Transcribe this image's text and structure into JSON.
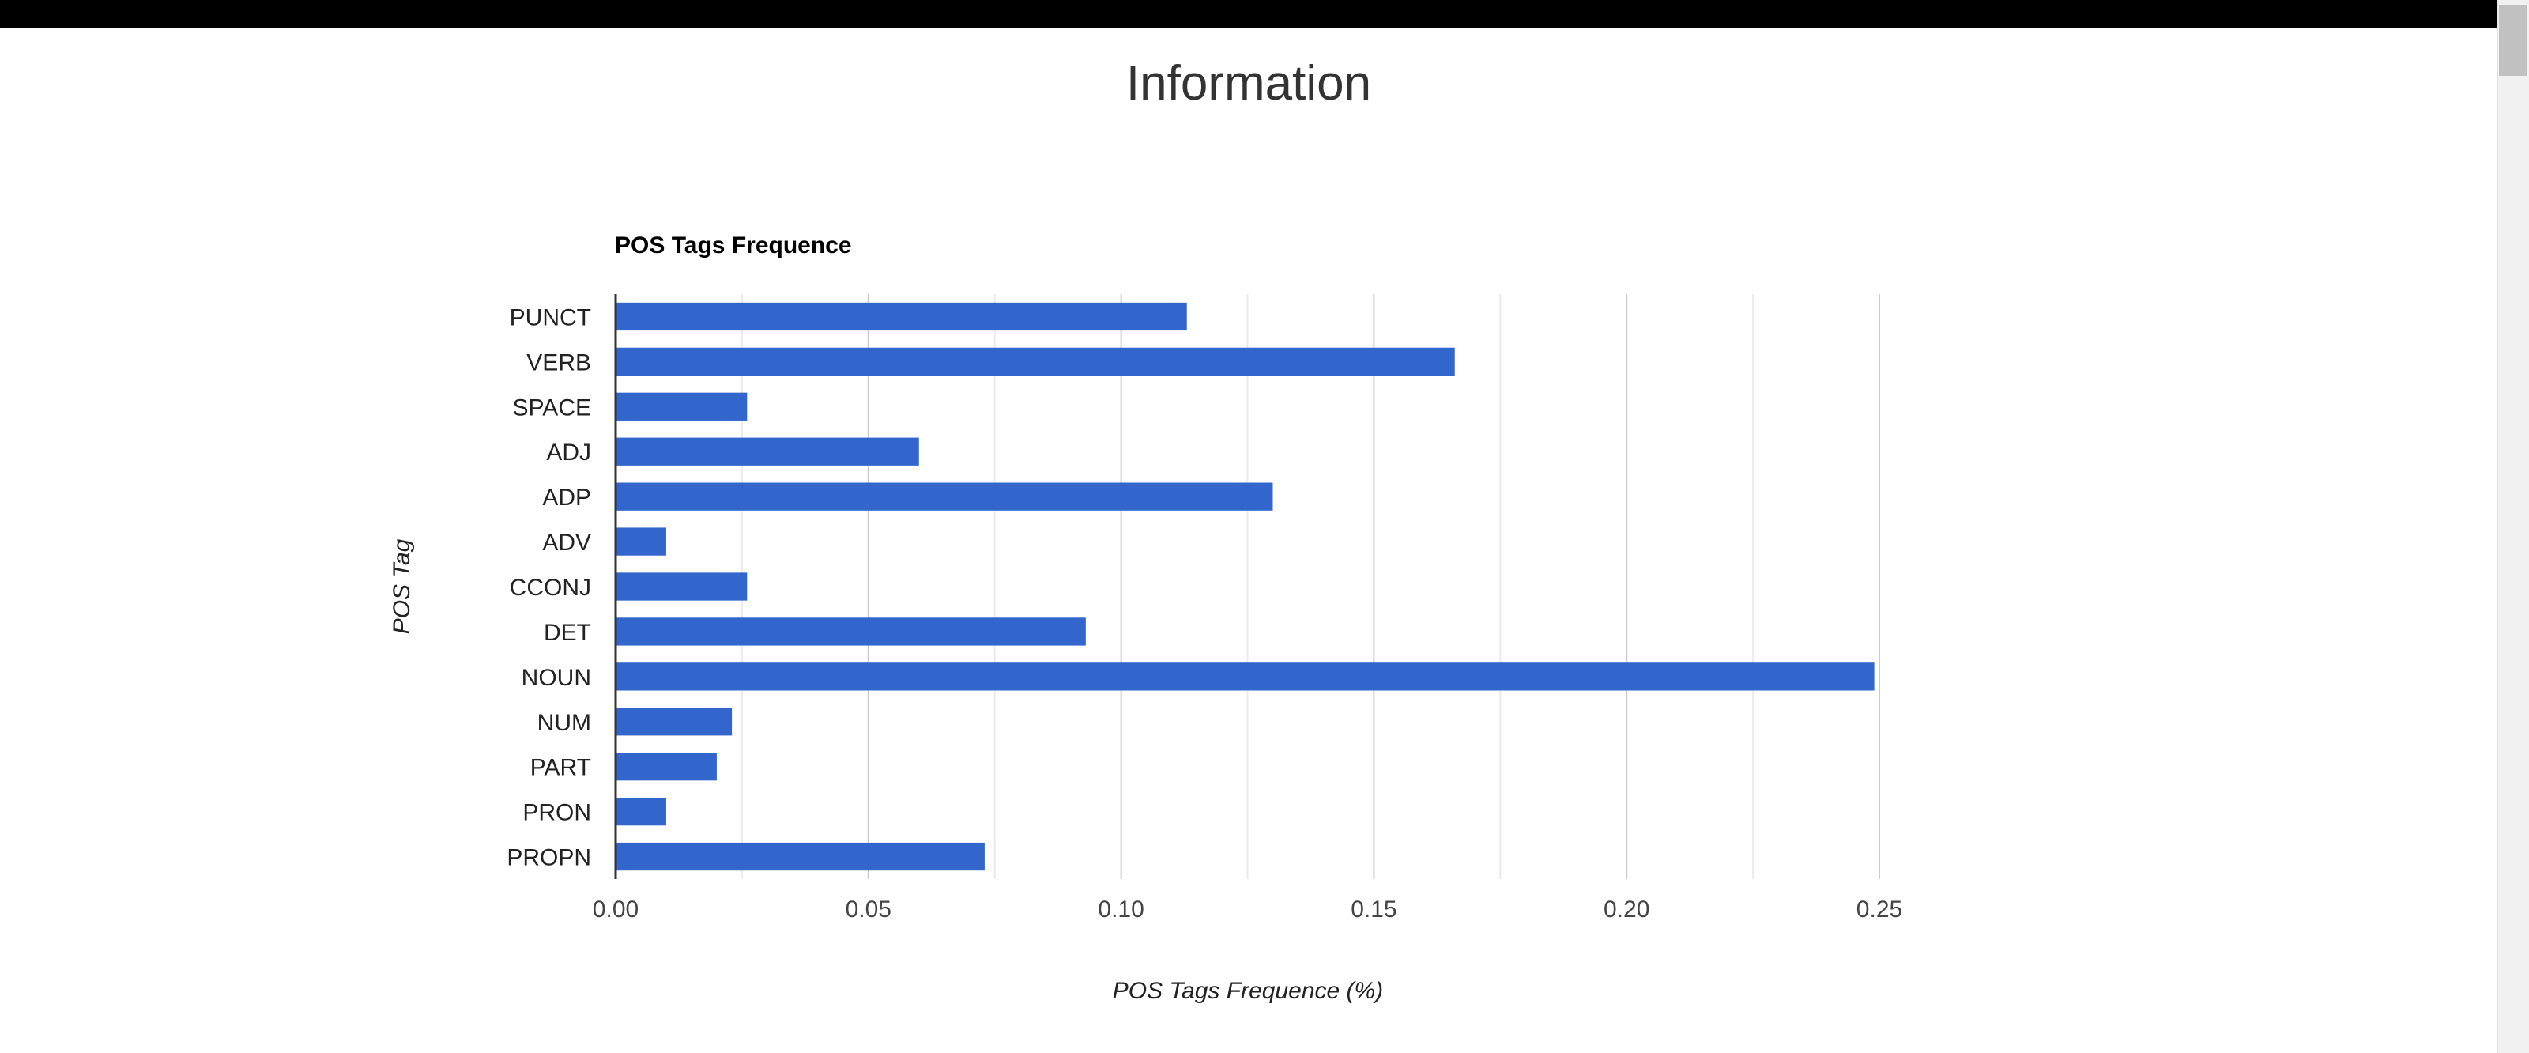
{
  "page": {
    "title": "Information"
  },
  "chart_data": {
    "type": "bar",
    "orientation": "horizontal",
    "title": "POS Tags Frequence",
    "xlabel": "POS Tags Frequence (%)",
    "ylabel": "POS Tag",
    "categories": [
      "PUNCT",
      "VERB",
      "SPACE",
      "ADJ",
      "ADP",
      "ADV",
      "CCONJ",
      "DET",
      "NOUN",
      "NUM",
      "PART",
      "PRON",
      "PROPN"
    ],
    "values": [
      0.113,
      0.166,
      0.026,
      0.06,
      0.13,
      0.01,
      0.026,
      0.093,
      0.249,
      0.023,
      0.02,
      0.01,
      0.073
    ],
    "xlim": [
      0,
      0.25
    ],
    "xticks": [
      "0.00",
      "0.05",
      "0.10",
      "0.15",
      "0.20",
      "0.25"
    ],
    "grid": true,
    "legend": "none",
    "bar_color": "#3366cc"
  }
}
